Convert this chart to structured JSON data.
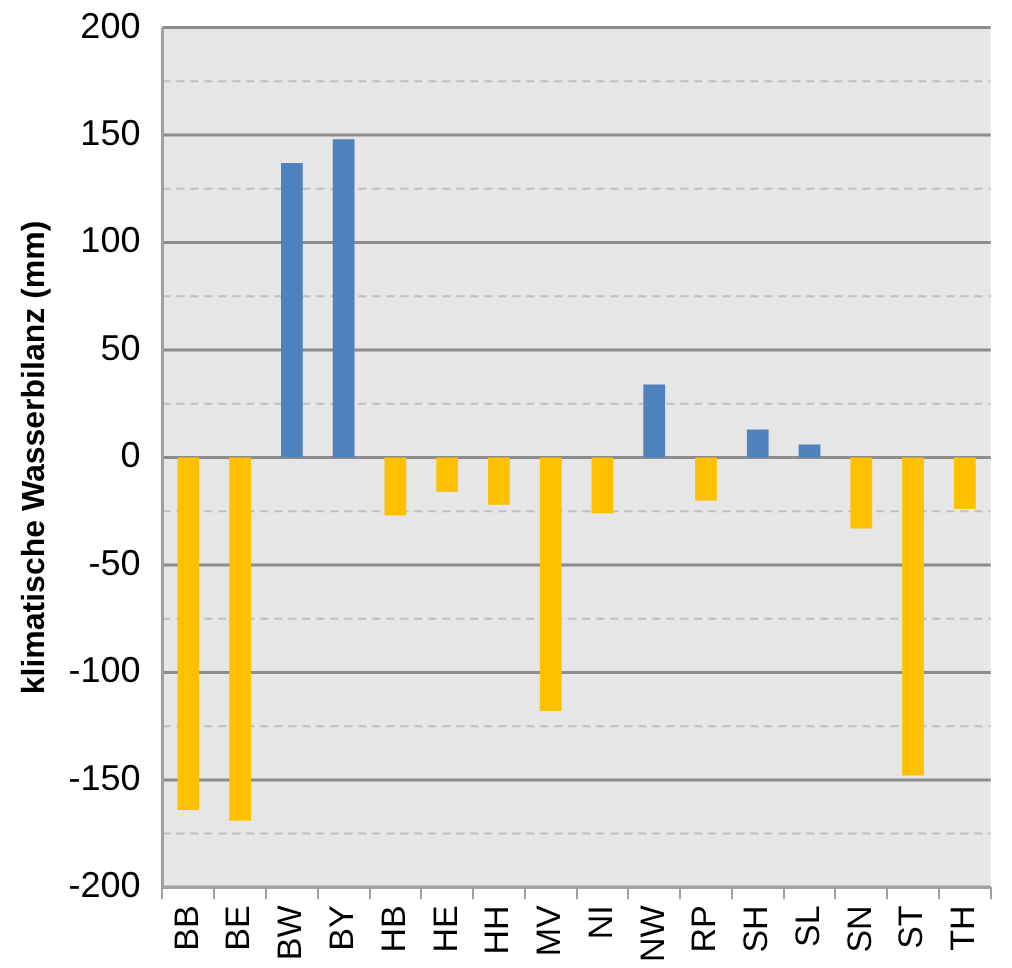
{
  "chart_data": {
    "type": "bar",
    "ylabel": "klimatische Wasserbilanz (mm)",
    "categories": [
      "BB",
      "BE",
      "BW",
      "BY",
      "HB",
      "HE",
      "HH",
      "MV",
      "NI",
      "NW",
      "RP",
      "SH",
      "SL",
      "SN",
      "ST",
      "TH"
    ],
    "values": [
      -164,
      -169,
      137,
      148,
      -27,
      -16,
      -22,
      -118,
      -26,
      34,
      -20,
      13,
      6,
      -33,
      -148,
      -24
    ],
    "colors": [
      "#ffc000",
      "#ffc000",
      "#4f81bd",
      "#4f81bd",
      "#ffc000",
      "#ffc000",
      "#ffc000",
      "#ffc000",
      "#ffc000",
      "#4f81bd",
      "#ffc000",
      "#4f81bd",
      "#4f81bd",
      "#ffc000",
      "#ffc000",
      "#ffc000"
    ],
    "ylim": [
      -200,
      200
    ],
    "yticks": [
      -200,
      {
        "value": -175,
        "label": null
      },
      -150,
      {
        "value": -125,
        "label": null
      },
      -100,
      {
        "value": -75,
        "label": null
      },
      -50,
      {
        "value": -25,
        "label": null
      },
      0,
      {
        "value": 25,
        "label": null
      },
      50,
      {
        "value": 75,
        "label": null
      },
      100,
      {
        "value": 125,
        "label": null
      },
      150,
      {
        "value": 175,
        "label": null
      },
      200
    ],
    "grid": "y",
    "legend": false
  }
}
